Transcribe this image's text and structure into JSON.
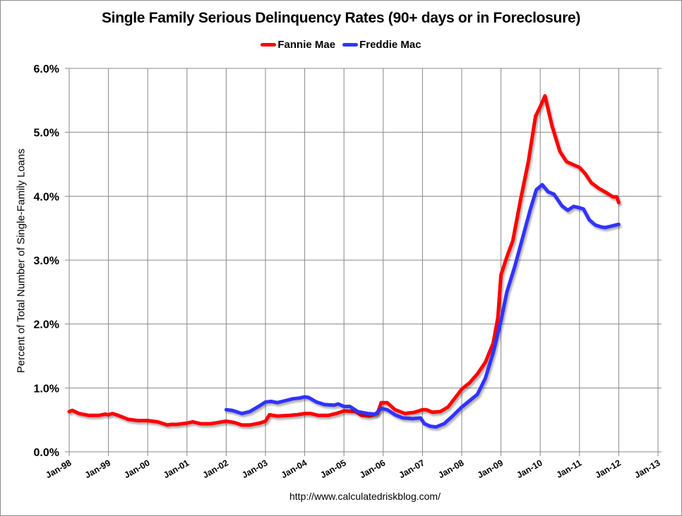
{
  "chart_data": {
    "type": "line",
    "title": "Single Family Serious Delinquency Rates (90+ days or in Foreclosure)",
    "xlabel": "",
    "ylabel": "Percent of Total Number of Single-Family Loans",
    "ylim": [
      0,
      6
    ],
    "xlim": [
      1998,
      2013
    ],
    "y_ticks": [
      "0.0%",
      "1.0%",
      "2.0%",
      "3.0%",
      "4.0%",
      "5.0%",
      "6.0%"
    ],
    "x_ticks": [
      "Jan-98",
      "Jan-99",
      "Jan-00",
      "Jan-01",
      "Jan-02",
      "Jan-03",
      "Jan-04",
      "Jan-05",
      "Jan-06",
      "Jan-07",
      "Jan-08",
      "Jan-09",
      "Jan-10",
      "Jan-11",
      "Jan-12",
      "Jan-13"
    ],
    "grid": true,
    "legend_position": "top-center",
    "source_note": "http://www.calculatedriskblog.com/",
    "series": [
      {
        "name": "Fannie Mae",
        "color": "#ff0000",
        "points": [
          [
            1998.0,
            0.63
          ],
          [
            1998.08,
            0.65
          ],
          [
            1998.25,
            0.6
          ],
          [
            1998.5,
            0.57
          ],
          [
            1998.75,
            0.57
          ],
          [
            1998.92,
            0.59
          ],
          [
            1999.0,
            0.58
          ],
          [
            1999.1,
            0.6
          ],
          [
            1999.25,
            0.57
          ],
          [
            1999.5,
            0.51
          ],
          [
            1999.75,
            0.49
          ],
          [
            2000.0,
            0.49
          ],
          [
            2000.25,
            0.47
          ],
          [
            2000.5,
            0.42
          ],
          [
            2000.6,
            0.43
          ],
          [
            2000.75,
            0.43
          ],
          [
            2001.0,
            0.45
          ],
          [
            2001.15,
            0.47
          ],
          [
            2001.35,
            0.44
          ],
          [
            2001.6,
            0.44
          ],
          [
            2001.8,
            0.46
          ],
          [
            2002.0,
            0.48
          ],
          [
            2002.2,
            0.46
          ],
          [
            2002.4,
            0.42
          ],
          [
            2002.6,
            0.42
          ],
          [
            2002.85,
            0.45
          ],
          [
            2003.0,
            0.48
          ],
          [
            2003.1,
            0.58
          ],
          [
            2003.3,
            0.56
          ],
          [
            2003.6,
            0.57
          ],
          [
            2003.8,
            0.58
          ],
          [
            2004.0,
            0.6
          ],
          [
            2004.15,
            0.6
          ],
          [
            2004.35,
            0.57
          ],
          [
            2004.6,
            0.57
          ],
          [
            2004.8,
            0.6
          ],
          [
            2005.0,
            0.64
          ],
          [
            2005.3,
            0.63
          ],
          [
            2005.45,
            0.57
          ],
          [
            2005.65,
            0.56
          ],
          [
            2005.85,
            0.6
          ],
          [
            2005.95,
            0.77
          ],
          [
            2006.1,
            0.77
          ],
          [
            2006.3,
            0.66
          ],
          [
            2006.55,
            0.6
          ],
          [
            2006.8,
            0.62
          ],
          [
            2007.0,
            0.66
          ],
          [
            2007.1,
            0.66
          ],
          [
            2007.25,
            0.62
          ],
          [
            2007.45,
            0.63
          ],
          [
            2007.65,
            0.7
          ],
          [
            2007.85,
            0.86
          ],
          [
            2008.0,
            0.98
          ],
          [
            2008.2,
            1.08
          ],
          [
            2008.4,
            1.22
          ],
          [
            2008.6,
            1.4
          ],
          [
            2008.8,
            1.7
          ],
          [
            2008.92,
            2.1
          ],
          [
            2009.0,
            2.77
          ],
          [
            2009.15,
            3.05
          ],
          [
            2009.3,
            3.3
          ],
          [
            2009.5,
            3.95
          ],
          [
            2009.7,
            4.55
          ],
          [
            2009.88,
            5.25
          ],
          [
            2010.0,
            5.4
          ],
          [
            2010.12,
            5.57
          ],
          [
            2010.3,
            5.1
          ],
          [
            2010.5,
            4.7
          ],
          [
            2010.67,
            4.54
          ],
          [
            2010.85,
            4.49
          ],
          [
            2011.0,
            4.45
          ],
          [
            2011.15,
            4.35
          ],
          [
            2011.3,
            4.21
          ],
          [
            2011.5,
            4.12
          ],
          [
            2011.67,
            4.06
          ],
          [
            2011.85,
            3.99
          ],
          [
            2011.95,
            3.99
          ],
          [
            2012.0,
            3.9
          ]
        ]
      },
      {
        "name": "Freddie Mac",
        "color": "#3333ff",
        "points": [
          [
            2002.0,
            0.66
          ],
          [
            2002.15,
            0.65
          ],
          [
            2002.4,
            0.6
          ],
          [
            2002.6,
            0.63
          ],
          [
            2002.85,
            0.72
          ],
          [
            2003.0,
            0.78
          ],
          [
            2003.15,
            0.79
          ],
          [
            2003.3,
            0.77
          ],
          [
            2003.5,
            0.8
          ],
          [
            2003.7,
            0.83
          ],
          [
            2003.85,
            0.84
          ],
          [
            2004.0,
            0.86
          ],
          [
            2004.1,
            0.85
          ],
          [
            2004.3,
            0.78
          ],
          [
            2004.5,
            0.74
          ],
          [
            2004.75,
            0.73
          ],
          [
            2004.85,
            0.75
          ],
          [
            2005.0,
            0.71
          ],
          [
            2005.15,
            0.71
          ],
          [
            2005.35,
            0.63
          ],
          [
            2005.6,
            0.6
          ],
          [
            2005.8,
            0.59
          ],
          [
            2005.95,
            0.68
          ],
          [
            2006.1,
            0.66
          ],
          [
            2006.3,
            0.58
          ],
          [
            2006.5,
            0.53
          ],
          [
            2006.75,
            0.52
          ],
          [
            2006.95,
            0.53
          ],
          [
            2007.05,
            0.44
          ],
          [
            2007.2,
            0.4
          ],
          [
            2007.35,
            0.39
          ],
          [
            2007.55,
            0.44
          ],
          [
            2007.75,
            0.55
          ],
          [
            2008.0,
            0.7
          ],
          [
            2008.2,
            0.8
          ],
          [
            2008.4,
            0.9
          ],
          [
            2008.6,
            1.15
          ],
          [
            2008.8,
            1.55
          ],
          [
            2009.0,
            2.05
          ],
          [
            2009.15,
            2.5
          ],
          [
            2009.35,
            2.9
          ],
          [
            2009.55,
            3.35
          ],
          [
            2009.75,
            3.8
          ],
          [
            2009.9,
            4.1
          ],
          [
            2010.05,
            4.18
          ],
          [
            2010.2,
            4.07
          ],
          [
            2010.35,
            4.03
          ],
          [
            2010.55,
            3.85
          ],
          [
            2010.7,
            3.78
          ],
          [
            2010.85,
            3.84
          ],
          [
            2011.0,
            3.82
          ],
          [
            2011.1,
            3.8
          ],
          [
            2011.25,
            3.63
          ],
          [
            2011.4,
            3.55
          ],
          [
            2011.55,
            3.52
          ],
          [
            2011.65,
            3.51
          ],
          [
            2011.8,
            3.53
          ],
          [
            2012.0,
            3.56
          ]
        ]
      }
    ]
  },
  "legend": {
    "items": [
      {
        "label": "Fannie Mae",
        "color": "#ff0000"
      },
      {
        "label": "Freddie Mac",
        "color": "#3333ff"
      }
    ]
  }
}
